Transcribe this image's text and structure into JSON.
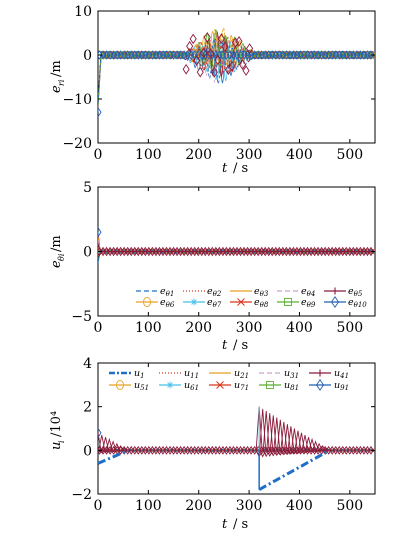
{
  "chart_data": [
    {
      "type": "line",
      "xlabel": "t / s",
      "ylabel": {
        "var": "e",
        "sub": "ri",
        "unit": "/m"
      },
      "xlim": [
        0,
        550
      ],
      "ylim": [
        -20,
        10
      ],
      "xticks": [
        0,
        100,
        200,
        300,
        400,
        500
      ],
      "yticks": [
        10,
        0,
        -10,
        -20
      ],
      "grid": false,
      "description_values": {
        "initial_value": -13,
        "steady_band": [
          -1,
          1
        ],
        "burst_window": [
          170,
          310
        ],
        "burst_range": [
          -8,
          6
        ]
      }
    },
    {
      "type": "line",
      "xlabel": "t / s",
      "ylabel": {
        "var": "e",
        "sub": "θi",
        "unit": "/m"
      },
      "xlim": [
        0,
        550
      ],
      "ylim": [
        -5,
        5
      ],
      "xticks": [
        0,
        100,
        200,
        300,
        400,
        500
      ],
      "yticks": [
        5,
        0,
        -5
      ],
      "grid": false,
      "legend": {
        "position": "bottom-right",
        "entries": [
          {
            "var": "e",
            "sub": "θ1",
            "color": "#1f6fc7",
            "dash": "5,3",
            "marker": "none"
          },
          {
            "var": "e",
            "sub": "θ2",
            "color": "#d8361a",
            "dash": "1,2",
            "marker": "none"
          },
          {
            "var": "e",
            "sub": "θ3",
            "color": "#e8a020",
            "dash": "",
            "marker": "none"
          },
          {
            "var": "e",
            "sub": "θ4",
            "color": "#c9a0c9",
            "dash": "5,3",
            "marker": "none"
          },
          {
            "var": "e",
            "sub": "θ5",
            "color": "#8c1a3a",
            "dash": "",
            "marker": "plus"
          },
          {
            "var": "e",
            "sub": "θ6",
            "color": "#e8a020",
            "dash": "",
            "marker": "circle"
          },
          {
            "var": "e",
            "sub": "θ7",
            "color": "#48c0e8",
            "dash": "",
            "marker": "star"
          },
          {
            "var": "e",
            "sub": "θ8",
            "color": "#d8361a",
            "dash": "",
            "marker": "x"
          },
          {
            "var": "e",
            "sub": "θ9",
            "color": "#5aae30",
            "dash": "",
            "marker": "square"
          },
          {
            "var": "e",
            "sub": "θ10",
            "color": "#2060b0",
            "dash": "",
            "marker": "diamond"
          }
        ]
      },
      "description_values": {
        "initial_value": 1.5,
        "steady_band": [
          -0.2,
          0.2
        ]
      }
    },
    {
      "type": "line",
      "xlabel": "t / s",
      "ylabel": {
        "var": "u",
        "sub": "i",
        "unit": "/10⁴"
      },
      "xlim": [
        0,
        550
      ],
      "ylim": [
        -2,
        4
      ],
      "xticks": [
        0,
        100,
        200,
        300,
        400,
        500
      ],
      "yticks": [
        4,
        2,
        0,
        -2
      ],
      "grid": false,
      "legend": {
        "position": "top",
        "entries": [
          {
            "var": "u",
            "sub": "1",
            "color": "#1f6fc7",
            "dash": "6,2,2,2",
            "marker": "none"
          },
          {
            "var": "u",
            "sub": "11",
            "color": "#d8361a",
            "dash": "1,2",
            "marker": "none"
          },
          {
            "var": "u",
            "sub": "21",
            "color": "#e8a020",
            "dash": "",
            "marker": "none"
          },
          {
            "var": "u",
            "sub": "31",
            "color": "#c9a0c9",
            "dash": "5,3",
            "marker": "none"
          },
          {
            "var": "u",
            "sub": "41",
            "color": "#8c1a3a",
            "dash": "",
            "marker": "plus"
          },
          {
            "var": "u",
            "sub": "51",
            "color": "#e8a020",
            "dash": "",
            "marker": "circle"
          },
          {
            "var": "u",
            "sub": "61",
            "color": "#48c0e8",
            "dash": "",
            "marker": "star"
          },
          {
            "var": "u",
            "sub": "71",
            "color": "#d8361a",
            "dash": "",
            "marker": "x"
          },
          {
            "var": "u",
            "sub": "81",
            "color": "#5aae30",
            "dash": "",
            "marker": "square"
          },
          {
            "var": "u",
            "sub": "91",
            "color": "#2060b0",
            "dash": "",
            "marker": "diamond"
          }
        ]
      },
      "series_values": {
        "u1_ramp_1": {
          "x": [
            0,
            60
          ],
          "y": [
            -0.6,
            0
          ]
        },
        "u1_ramp_2": {
          "x": [
            320,
            460
          ],
          "y": [
            -1.8,
            0
          ]
        },
        "spike_2": {
          "x": [
            320,
            460
          ],
          "y": [
            2.0,
            0
          ]
        },
        "spike_1": {
          "x": [
            0,
            60
          ],
          "y": [
            0.8,
            0
          ]
        }
      }
    }
  ]
}
